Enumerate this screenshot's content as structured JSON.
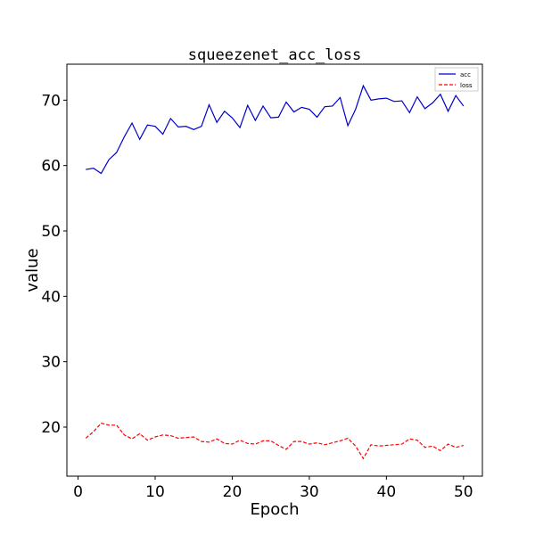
{
  "chart_data": {
    "type": "line",
    "title": "squeezenet_acc_loss",
    "xlabel": "Epoch",
    "ylabel": "value",
    "xlim": [
      -1.45,
      52.45
    ],
    "ylim": [
      12.5,
      75.5
    ],
    "xticks": [
      0,
      10,
      20,
      30,
      40,
      50
    ],
    "yticks": [
      20,
      30,
      40,
      50,
      60,
      70
    ],
    "grid": false,
    "legend_position": "top-right",
    "x": [
      1,
      2,
      3,
      4,
      5,
      6,
      7,
      8,
      9,
      10,
      11,
      12,
      13,
      14,
      15,
      16,
      17,
      18,
      19,
      20,
      21,
      22,
      23,
      24,
      25,
      26,
      27,
      28,
      29,
      30,
      31,
      32,
      33,
      34,
      35,
      36,
      37,
      38,
      39,
      40,
      41,
      42,
      43,
      44,
      45,
      46,
      47,
      48,
      49,
      50
    ],
    "series": [
      {
        "name": "acc",
        "color": "#0000cc",
        "style": "solid",
        "values": [
          59.4,
          59.6,
          58.8,
          60.9,
          62.0,
          64.4,
          66.5,
          64.0,
          66.2,
          66.0,
          64.8,
          67.2,
          65.9,
          66.0,
          65.5,
          66.0,
          69.3,
          66.6,
          68.3,
          67.3,
          65.8,
          69.2,
          66.9,
          69.1,
          67.3,
          67.4,
          69.7,
          68.2,
          68.9,
          68.6,
          67.4,
          69.0,
          69.1,
          70.4,
          66.1,
          68.6,
          72.2,
          70.0,
          70.2,
          70.3,
          69.8,
          69.9,
          68.1,
          70.5,
          68.7,
          69.6,
          70.9,
          68.3,
          70.7,
          69.1
        ]
      },
      {
        "name": "loss",
        "color": "#ff0000",
        "style": "dashed",
        "values": [
          18.3,
          19.3,
          20.6,
          20.3,
          20.3,
          18.8,
          18.2,
          19.0,
          18.0,
          18.5,
          18.8,
          18.7,
          18.3,
          18.4,
          18.5,
          17.8,
          17.7,
          18.2,
          17.5,
          17.4,
          18.0,
          17.5,
          17.4,
          17.9,
          17.9,
          17.2,
          16.6,
          17.8,
          17.8,
          17.4,
          17.6,
          17.3,
          17.6,
          17.9,
          18.3,
          17.1,
          15.2,
          17.3,
          17.1,
          17.2,
          17.3,
          17.4,
          18.2,
          18.0,
          16.9,
          17.1,
          16.4,
          17.4,
          16.9,
          17.2
        ]
      }
    ]
  }
}
